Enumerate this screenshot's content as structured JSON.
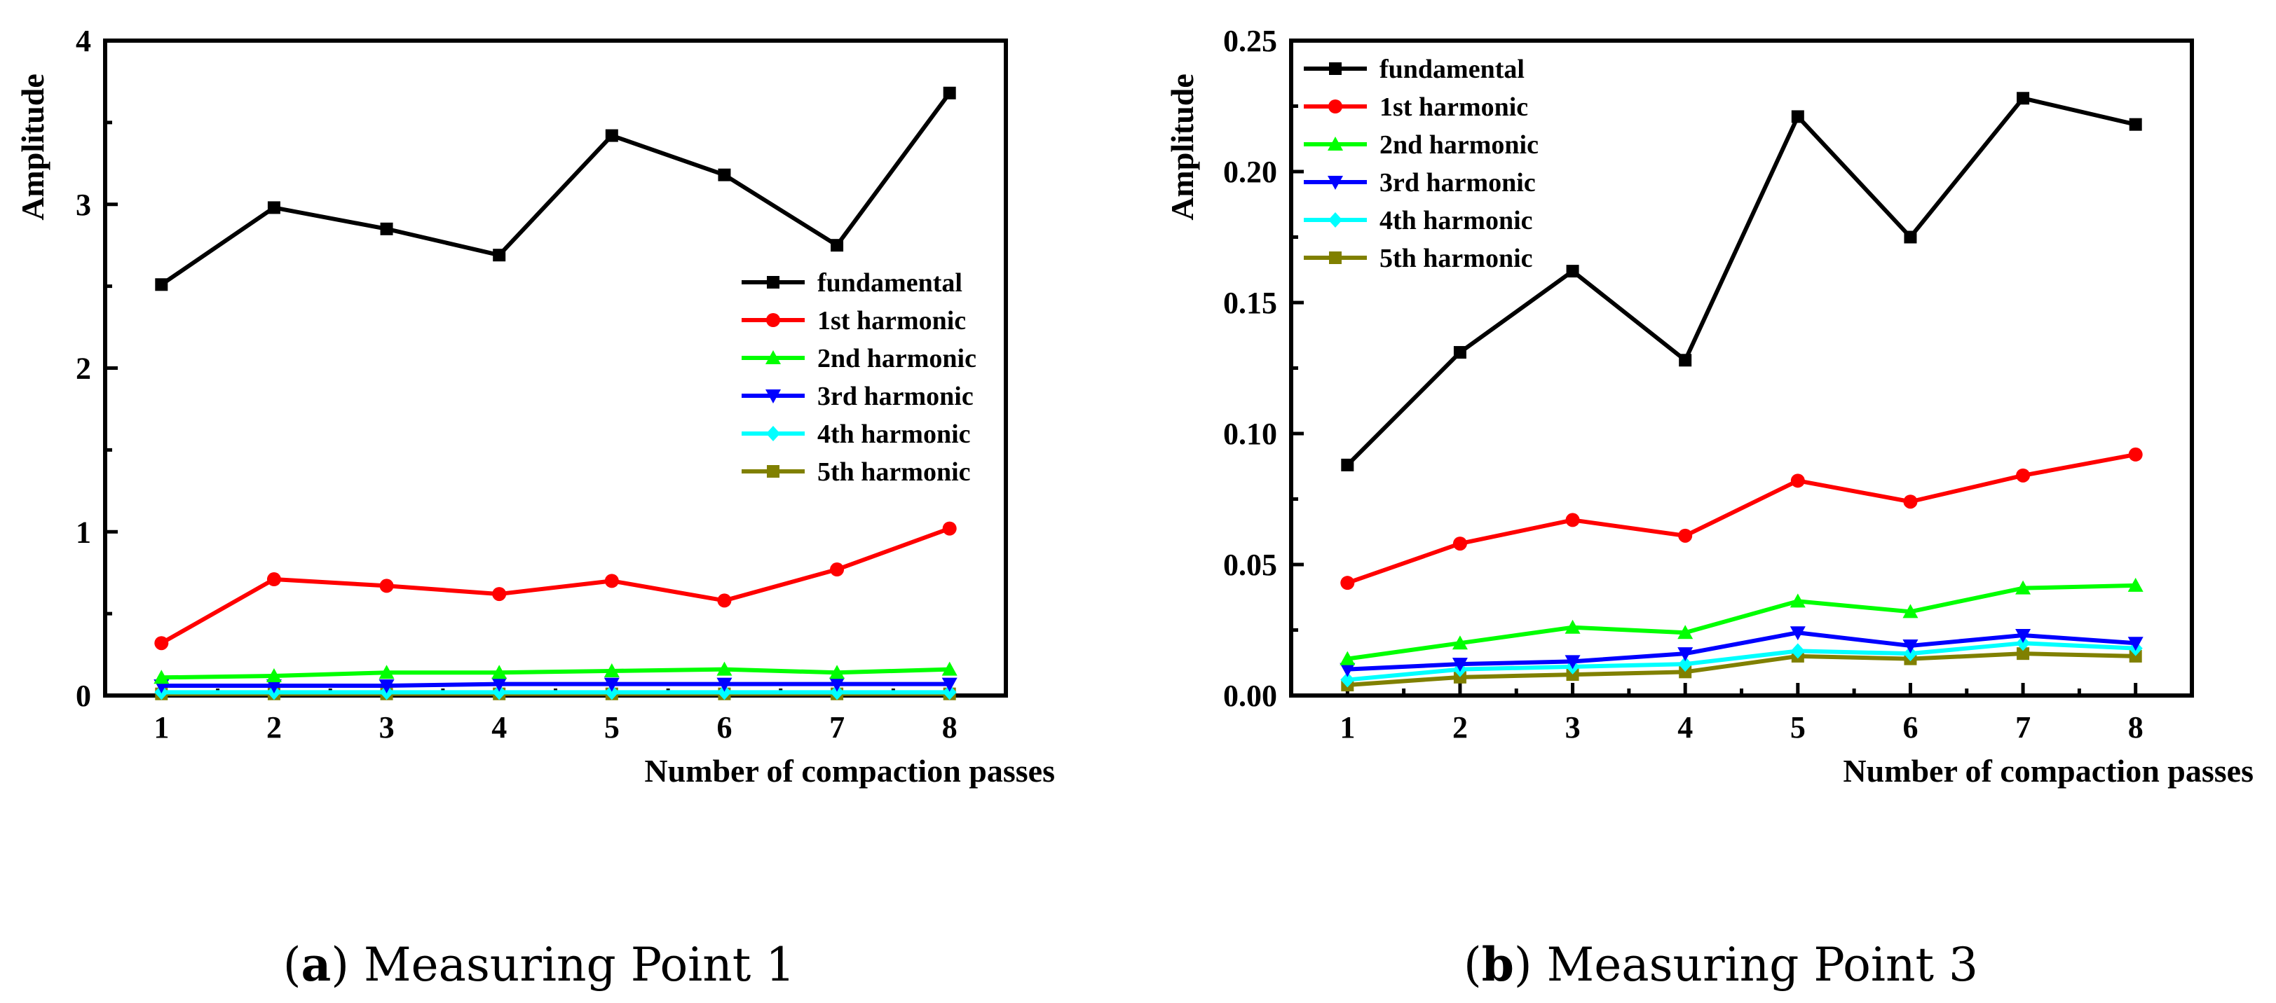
{
  "chart_data": [
    {
      "type": "line",
      "caption": {
        "letter": "a",
        "text": "Measuring Point 1"
      },
      "xlabel": "Number of compaction passes",
      "ylabel": "Amplitude",
      "x": [
        1,
        2,
        3,
        4,
        5,
        6,
        7,
        8
      ],
      "xlim": [
        0.5,
        8.5
      ],
      "ylim": [
        0,
        4
      ],
      "yticks": [
        "0",
        "1",
        "2",
        "3",
        "4"
      ],
      "legend_position": "right-middle",
      "series": [
        {
          "name": "fundamental",
          "color": "#000000",
          "marker": "square",
          "values": [
            2.51,
            2.98,
            2.85,
            2.69,
            3.42,
            3.18,
            2.75,
            3.68
          ]
        },
        {
          "name": "1st harmonic",
          "color": "#ff0000",
          "marker": "circle",
          "values": [
            0.32,
            0.71,
            0.67,
            0.62,
            0.7,
            0.58,
            0.77,
            1.02
          ]
        },
        {
          "name": "2nd harmonic",
          "color": "#00ff00",
          "marker": "triangle-up",
          "values": [
            0.11,
            0.12,
            0.14,
            0.14,
            0.15,
            0.16,
            0.14,
            0.16
          ]
        },
        {
          "name": "3rd harmonic",
          "color": "#0000ff",
          "marker": "triangle-down",
          "values": [
            0.06,
            0.06,
            0.06,
            0.07,
            0.07,
            0.07,
            0.07,
            0.07
          ]
        },
        {
          "name": "4th harmonic",
          "color": "#00ffff",
          "marker": "diamond",
          "values": [
            0.02,
            0.02,
            0.02,
            0.02,
            0.02,
            0.02,
            0.02,
            0.02
          ]
        },
        {
          "name": "5th harmonic",
          "color": "#808000",
          "marker": "square",
          "values": [
            0.01,
            0.01,
            0.01,
            0.01,
            0.01,
            0.01,
            0.01,
            0.01
          ]
        }
      ]
    },
    {
      "type": "line",
      "caption": {
        "letter": "b",
        "text": "Measuring Point 3"
      },
      "xlabel": "Number of compaction passes",
      "ylabel": "Amplitude",
      "x": [
        1,
        2,
        3,
        4,
        5,
        6,
        7,
        8
      ],
      "xlim": [
        0.5,
        8.5
      ],
      "ylim": [
        0,
        0.25
      ],
      "yticks": [
        "0.00",
        "0.05",
        "0.10",
        "0.15",
        "0.20",
        "0.25"
      ],
      "legend_position": "top-left",
      "series": [
        {
          "name": "fundamental",
          "color": "#000000",
          "marker": "square",
          "values": [
            0.088,
            0.131,
            0.162,
            0.128,
            0.221,
            0.175,
            0.228,
            0.218
          ]
        },
        {
          "name": "1st harmonic",
          "color": "#ff0000",
          "marker": "circle",
          "values": [
            0.043,
            0.058,
            0.067,
            0.061,
            0.082,
            0.074,
            0.084,
            0.092
          ]
        },
        {
          "name": "2nd harmonic",
          "color": "#00ff00",
          "marker": "triangle-up",
          "values": [
            0.014,
            0.02,
            0.026,
            0.024,
            0.036,
            0.032,
            0.041,
            0.042
          ]
        },
        {
          "name": "3rd harmonic",
          "color": "#0000ff",
          "marker": "triangle-down",
          "values": [
            0.01,
            0.012,
            0.013,
            0.016,
            0.024,
            0.019,
            0.023,
            0.02
          ]
        },
        {
          "name": "4th harmonic",
          "color": "#00ffff",
          "marker": "diamond",
          "values": [
            0.006,
            0.01,
            0.011,
            0.012,
            0.017,
            0.016,
            0.02,
            0.018
          ]
        },
        {
          "name": "5th harmonic",
          "color": "#808000",
          "marker": "square",
          "values": [
            0.004,
            0.007,
            0.008,
            0.009,
            0.015,
            0.014,
            0.016,
            0.015
          ]
        }
      ]
    }
  ]
}
